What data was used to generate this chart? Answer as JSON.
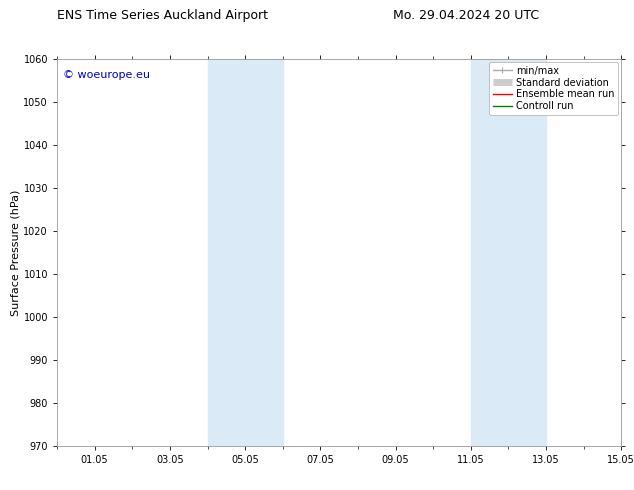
{
  "title_left": "ENS Time Series Auckland Airport",
  "title_right": "Mo. 29.04.2024 20 UTC",
  "ylabel": "Surface Pressure (hPa)",
  "ylim": [
    970,
    1060
  ],
  "yticks": [
    970,
    980,
    990,
    1000,
    1010,
    1020,
    1030,
    1040,
    1050,
    1060
  ],
  "xlim_start": 0.0,
  "xlim_end": 14.5,
  "xtick_positions": [
    1,
    3,
    5,
    7,
    9,
    11,
    13,
    15
  ],
  "xtick_labels": [
    "01.05",
    "03.05",
    "05.05",
    "07.05",
    "09.05",
    "11.05",
    "13.05",
    "15.05"
  ],
  "shaded_bands": [
    {
      "x_start": 4.0,
      "x_end": 6.0
    },
    {
      "x_start": 11.0,
      "x_end": 13.0
    }
  ],
  "shade_color": "#daeaf7",
  "watermark_text": "© woeurope.eu",
  "watermark_color": "#0000cc",
  "legend_entries": [
    {
      "label": "min/max",
      "color": "#aaaaaa",
      "lw": 1.0
    },
    {
      "label": "Standard deviation",
      "color": "#cccccc",
      "lw": 5
    },
    {
      "label": "Ensemble mean run",
      "color": "#ff0000",
      "lw": 1.0
    },
    {
      "label": "Controll run",
      "color": "#008000",
      "lw": 1.0
    }
  ],
  "bg_color": "#ffffff",
  "title_fontsize": 9,
  "tick_fontsize": 7,
  "ylabel_fontsize": 8,
  "watermark_fontsize": 8,
  "legend_fontsize": 7
}
